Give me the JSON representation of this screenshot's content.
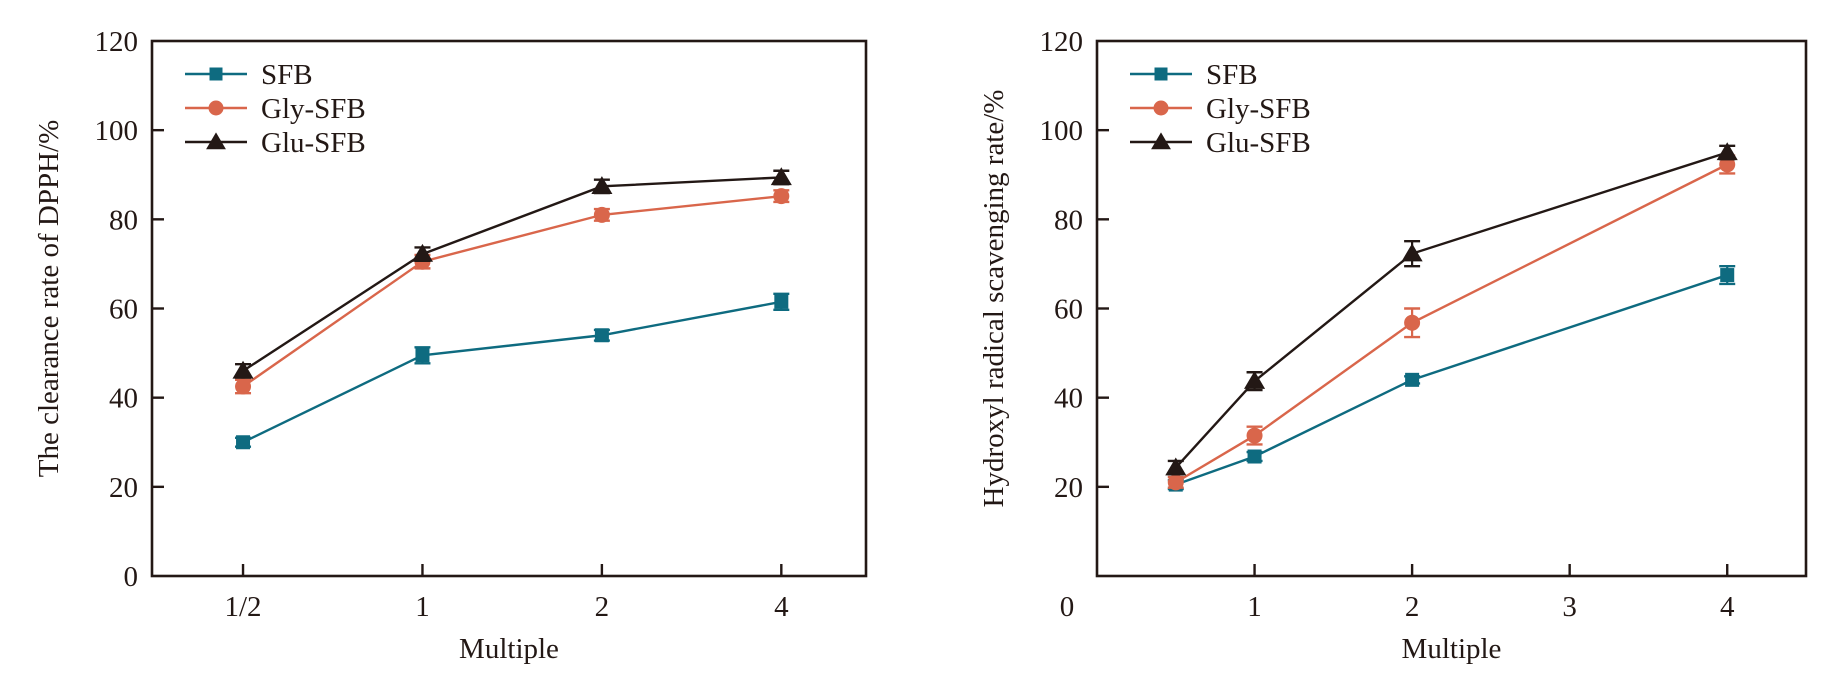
{
  "chart_data": [
    {
      "type": "line",
      "title": "",
      "xlabel": "Multiple",
      "ylabel": "The clearance rate of DPPH/%",
      "x_scale": "categorical",
      "categories": [
        "1/2",
        "1",
        "2",
        "4"
      ],
      "ylim": [
        0,
        120
      ],
      "yticks": [
        0,
        20,
        40,
        60,
        80,
        100,
        120
      ],
      "grid": false,
      "legend": "top-left",
      "series": [
        {
          "name": "SFB",
          "marker": "square",
          "color": "#0e6b80",
          "values": [
            30.0,
            49.5,
            54.0,
            61.5
          ],
          "errors": [
            1.0,
            1.8,
            1.2,
            1.8
          ]
        },
        {
          "name": "Gly-SFB",
          "marker": "circle",
          "color": "#d9664b",
          "values": [
            42.5,
            70.5,
            81.0,
            85.2
          ],
          "errors": [
            1.5,
            1.5,
            1.3,
            1.3
          ]
        },
        {
          "name": "Glu-SFB",
          "marker": "triangle",
          "color": "#231815",
          "values": [
            46.0,
            72.2,
            87.4,
            89.4
          ],
          "errors": [
            1.5,
            1.5,
            1.5,
            1.5
          ]
        }
      ]
    },
    {
      "type": "line",
      "title": "",
      "xlabel": "Multiple",
      "ylabel": "Hydroxyl radical scavenging rate/%",
      "x_scale": "linear",
      "x": [
        0.5,
        1,
        2,
        4
      ],
      "xlim": [
        0,
        4.5
      ],
      "xticks": [
        0,
        1,
        2,
        3,
        4
      ],
      "ylim": [
        0,
        120
      ],
      "yticks": [
        20,
        40,
        60,
        80,
        100,
        120
      ],
      "grid": false,
      "legend": "top-left",
      "series": [
        {
          "name": "SFB",
          "marker": "square",
          "color": "#0e6b80",
          "values": [
            20.5,
            26.8,
            44.0,
            67.5
          ],
          "errors": [
            1.0,
            1.0,
            0.8,
            2.0
          ]
        },
        {
          "name": "Gly-SFB",
          "marker": "circle",
          "color": "#d9664b",
          "values": [
            21.0,
            31.5,
            56.8,
            92.3
          ],
          "errors": [
            1.2,
            2.0,
            3.2,
            2.0
          ]
        },
        {
          "name": "Glu-SFB",
          "marker": "triangle",
          "color": "#231815",
          "values": [
            24.3,
            43.7,
            72.3,
            95.0
          ],
          "errors": [
            1.5,
            2.0,
            2.8,
            1.5
          ]
        }
      ]
    }
  ]
}
